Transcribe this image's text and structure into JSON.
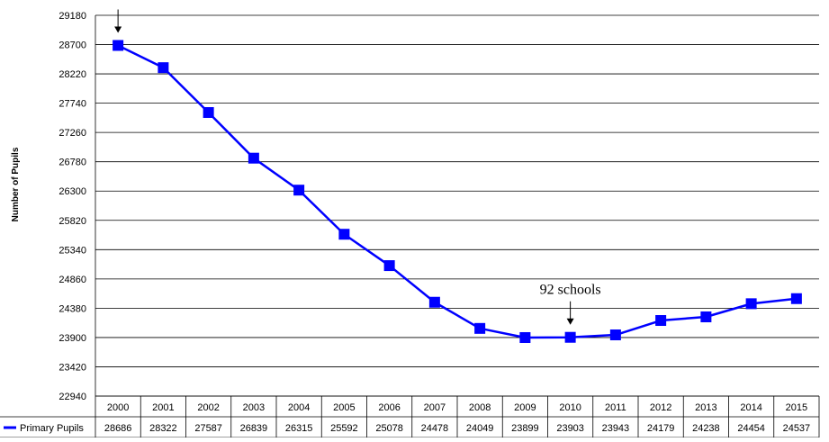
{
  "chart_data": {
    "type": "line",
    "title": "",
    "xlabel": "",
    "ylabel": "Number of Pupils",
    "ylim": [
      22940,
      29180
    ],
    "yticks": [
      29180,
      28700,
      28220,
      27740,
      27260,
      26780,
      26300,
      25820,
      25340,
      24860,
      24380,
      23900,
      23420,
      22940
    ],
    "categories": [
      "2000",
      "2001",
      "2002",
      "2003",
      "2004",
      "2005",
      "2006",
      "2007",
      "2008",
      "2009",
      "2010",
      "2011",
      "2012",
      "2013",
      "2014",
      "2015"
    ],
    "series": [
      {
        "name": "Primary Pupils",
        "color": "#0000ff",
        "marker": "square",
        "values": [
          28686,
          28322,
          27587,
          26839,
          26315,
          25592,
          25078,
          24478,
          24049,
          23899,
          23903,
          23943,
          24179,
          24238,
          24454,
          24537
        ]
      }
    ],
    "data_table": true,
    "grid": "horizontal",
    "annotations": [
      {
        "text": "",
        "category": "2000",
        "arrow": "down"
      },
      {
        "text": "92 schools",
        "category": "2010",
        "arrow": "down"
      }
    ]
  }
}
